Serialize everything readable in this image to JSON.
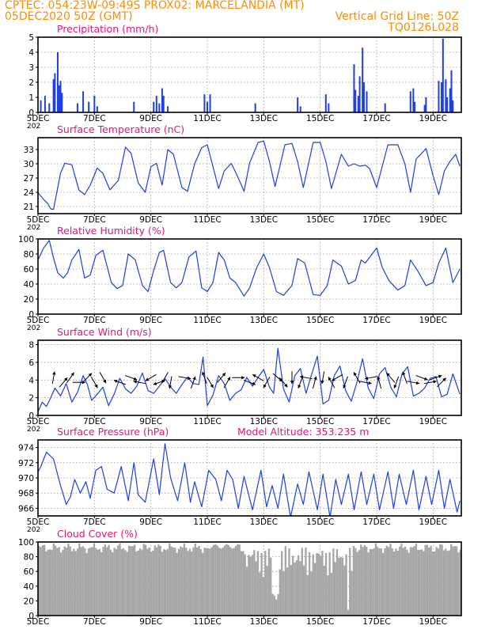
{
  "header": {
    "line1_left": "CPTEC:   054:23W-09:49S   PROX02: MARCELANDIA (MT)",
    "line2_left": "05DEC2020 50Z (GMT)",
    "line2_right": "Vertical Grid Line: 50Z",
    "line3_right": "TQ0126L028",
    "color": "#ff8c00"
  },
  "colors": {
    "title": "#e8127d",
    "series": "#1f3fe0",
    "cloud": "#a6a6a6",
    "arrow": "#000000",
    "grid": "#9a9a9a"
  },
  "x_axis": {
    "day_range": [
      5,
      20
    ],
    "ticks": [
      5,
      7,
      9,
      11,
      13,
      15,
      17,
      19
    ],
    "tick_labels": [
      "5DEC",
      "7DEC",
      "9DEC",
      "11DEC",
      "13DEC",
      "15DEC",
      "17DEC",
      "19DEC"
    ],
    "first_label_partial": "202"
  },
  "chart_data": [
    {
      "type": "bar",
      "title": "Precipitation (mm/h)",
      "ylim": [
        0,
        5
      ],
      "yticks": [
        0,
        1,
        2,
        3,
        4,
        5
      ],
      "x_days": [
        5.1,
        5.25,
        5.4,
        5.55,
        5.6,
        5.7,
        5.75,
        5.8,
        5.85,
        6.4,
        6.6,
        6.8,
        7.0,
        7.1,
        8.4,
        9.1,
        9.2,
        9.3,
        9.4,
        9.45,
        9.6,
        10.9,
        11.0,
        11.1,
        12.7,
        14.2,
        14.3,
        15.2,
        15.3,
        16.2,
        16.25,
        16.35,
        16.4,
        16.5,
        16.55,
        16.65,
        17.3,
        18.2,
        18.3,
        18.35,
        18.7,
        18.75,
        19.2,
        19.3,
        19.35,
        19.45,
        19.5,
        19.6,
        19.65,
        19.7
      ],
      "values": [
        0.8,
        1.1,
        0.6,
        2.2,
        2.6,
        4.0,
        1.8,
        2.1,
        1.3,
        0.6,
        1.4,
        0.7,
        1.1,
        0.4,
        0.7,
        0.7,
        1.1,
        0.6,
        1.6,
        1.1,
        0.4,
        1.2,
        0.7,
        1.2,
        0.6,
        1.0,
        0.4,
        1.2,
        0.6,
        3.2,
        1.5,
        1.1,
        2.4,
        4.3,
        2.0,
        1.4,
        0.6,
        1.4,
        1.6,
        0.7,
        0.5,
        1.0,
        2.1,
        2.0,
        4.9,
        2.2,
        1.0,
        1.6,
        2.8,
        0.8
      ]
    },
    {
      "type": "line",
      "title": "Surface Temperature (nC)",
      "ylim": [
        19.5,
        35.5
      ],
      "yticks": [
        21,
        24,
        27,
        30,
        33
      ],
      "x_days": [
        5.0,
        5.2,
        5.35,
        5.45,
        5.55,
        5.65,
        5.8,
        5.95,
        6.2,
        6.45,
        6.65,
        6.85,
        7.1,
        7.3,
        7.55,
        7.85,
        8.1,
        8.3,
        8.55,
        8.8,
        9.0,
        9.2,
        9.4,
        9.6,
        9.8,
        10.1,
        10.3,
        10.55,
        10.8,
        11.0,
        11.15,
        11.4,
        11.6,
        11.85,
        12.1,
        12.3,
        12.5,
        12.8,
        13.0,
        13.2,
        13.4,
        13.75,
        14.0,
        14.2,
        14.4,
        14.75,
        15.0,
        15.2,
        15.4,
        15.75,
        16.0,
        16.2,
        16.4,
        16.6,
        16.75,
        17.0,
        17.2,
        17.4,
        17.75,
        18.0,
        18.2,
        18.4,
        18.75,
        19.0,
        19.2,
        19.4,
        19.6,
        19.8,
        19.95
      ],
      "values": [
        23.9,
        22.5,
        21.6,
        20.5,
        20.4,
        23.5,
        28.0,
        30.1,
        29.8,
        24.5,
        23.5,
        25.5,
        29.1,
        28.0,
        24.5,
        26.5,
        33.5,
        32.2,
        26.0,
        24.0,
        29.4,
        30.1,
        25.5,
        33.0,
        32.0,
        25.0,
        24.2,
        30.0,
        33.4,
        34.0,
        30.5,
        24.8,
        28.5,
        30.1,
        27.0,
        24.2,
        30.2,
        34.5,
        34.8,
        30.5,
        25.2,
        34.0,
        34.3,
        30.5,
        25.0,
        34.5,
        34.5,
        30.5,
        24.8,
        32.0,
        29.5,
        30.0,
        29.5,
        29.7,
        29.0,
        25.0,
        29.5,
        34.0,
        34.0,
        30.0,
        24.0,
        31.0,
        33.2,
        27.5,
        23.5,
        28.5,
        30.5,
        32.0,
        29.5
      ]
    },
    {
      "type": "line",
      "title": "Relative Humidity (%)",
      "ylim": [
        0,
        100
      ],
      "yticks": [
        0,
        20,
        40,
        60,
        80,
        100
      ],
      "x_days": [
        5.0,
        5.2,
        5.4,
        5.55,
        5.7,
        5.9,
        6.05,
        6.2,
        6.45,
        6.65,
        6.85,
        7.05,
        7.3,
        7.6,
        7.8,
        8.0,
        8.2,
        8.45,
        8.7,
        8.9,
        9.1,
        9.3,
        9.45,
        9.7,
        9.9,
        10.1,
        10.35,
        10.6,
        10.8,
        11.0,
        11.2,
        11.4,
        11.6,
        11.8,
        12.0,
        12.3,
        12.5,
        12.75,
        13.0,
        13.2,
        13.45,
        13.7,
        14.0,
        14.2,
        14.45,
        14.75,
        15.0,
        15.25,
        15.45,
        15.75,
        16.0,
        16.25,
        16.45,
        16.6,
        16.8,
        17.0,
        17.2,
        17.45,
        17.75,
        18.0,
        18.2,
        18.45,
        18.75,
        19.0,
        19.2,
        19.45,
        19.7,
        19.95
      ],
      "values": [
        72,
        88,
        98,
        75,
        55,
        48,
        55,
        72,
        86,
        48,
        52,
        78,
        85,
        42,
        34,
        38,
        80,
        72,
        38,
        30,
        58,
        82,
        85,
        42,
        35,
        42,
        76,
        84,
        35,
        30,
        42,
        82,
        72,
        48,
        42,
        24,
        35,
        62,
        80,
        62,
        30,
        25,
        38,
        74,
        68,
        26,
        25,
        38,
        72,
        64,
        40,
        45,
        72,
        68,
        78,
        88,
        62,
        44,
        32,
        38,
        72,
        58,
        38,
        42,
        68,
        88,
        42,
        60
      ]
    },
    {
      "type": "line",
      "title": "Surface Wind (m/s)",
      "ylim": [
        0,
        8.5
      ],
      "yticks": [
        0,
        2,
        4,
        6,
        8
      ],
      "x_days": [
        5.0,
        5.15,
        5.3,
        5.45,
        5.6,
        5.8,
        6.0,
        6.2,
        6.4,
        6.6,
        6.75,
        6.9,
        7.1,
        7.3,
        7.5,
        7.7,
        7.9,
        8.1,
        8.3,
        8.5,
        8.7,
        8.9,
        9.1,
        9.3,
        9.5,
        9.7,
        9.9,
        10.1,
        10.3,
        10.5,
        10.7,
        10.85,
        11.0,
        11.2,
        11.4,
        11.6,
        11.8,
        12.0,
        12.2,
        12.4,
        12.6,
        12.8,
        13.0,
        13.2,
        13.35,
        13.5,
        13.7,
        13.9,
        14.1,
        14.3,
        14.5,
        14.7,
        14.9,
        15.1,
        15.3,
        15.5,
        15.7,
        15.9,
        16.1,
        16.3,
        16.5,
        16.7,
        16.9,
        17.1,
        17.3,
        17.5,
        17.7,
        17.9,
        18.1,
        18.3,
        18.5,
        18.7,
        18.9,
        19.1,
        19.3,
        19.5,
        19.7,
        19.95
      ],
      "values": [
        0.4,
        1.5,
        1.0,
        2.0,
        3.1,
        2.2,
        3.6,
        1.5,
        2.6,
        4.5,
        3.5,
        1.7,
        2.4,
        3.2,
        1.1,
        2.4,
        4.2,
        3.0,
        2.5,
        3.3,
        4.8,
        2.8,
        2.5,
        3.3,
        4.2,
        3.2,
        2.5,
        3.5,
        4.3,
        3.6,
        3.5,
        6.6,
        1.1,
        2.3,
        4.5,
        3.6,
        1.7,
        2.5,
        2.9,
        4.3,
        3.3,
        4.3,
        5.2,
        3.2,
        2.5,
        7.6,
        3.0,
        1.5,
        4.5,
        5.3,
        2.5,
        4.7,
        6.7,
        1.3,
        1.7,
        4.5,
        5.6,
        2.8,
        1.6,
        3.7,
        6.4,
        3.1,
        1.9,
        4.7,
        5.4,
        3.2,
        2.1,
        4.7,
        5.5,
        2.2,
        2.5,
        3.1,
        4.2,
        4.4,
        2.1,
        2.4,
        4.7,
        2.4
      ],
      "arrow_days": [
        5.55,
        5.9,
        6.15,
        6.45,
        6.75,
        7.0,
        7.3,
        7.9,
        8.3,
        8.6,
        9.0,
        9.3,
        9.5,
        9.7,
        10.2,
        10.5,
        10.9,
        11.1,
        11.5,
        11.7,
        12.1,
        12.5,
        12.8,
        13.1,
        13.5,
        13.7,
        14.0,
        14.3,
        14.5,
        14.8,
        15.1,
        15.4,
        15.6,
        15.9,
        16.3,
        16.6,
        16.8,
        17.1,
        17.5,
        17.7,
        18.0,
        18.3,
        18.6,
        18.9,
        19.1,
        19.3
      ],
      "arrow_dirs": [
        10,
        40,
        35,
        90,
        45,
        150,
        150,
        290,
        110,
        280,
        240,
        250,
        210,
        190,
        100,
        20,
        340,
        150,
        40,
        30,
        90,
        110,
        300,
        210,
        130,
        140,
        180,
        200,
        280,
        15,
        190,
        330,
        240,
        200,
        330,
        100,
        260,
        345,
        320,
        200,
        340,
        100,
        110,
        80,
        70,
        45
      ],
      "arrow_level": 4.0
    },
    {
      "type": "line",
      "title": "Surface Pressure (hPa)",
      "annotation": "Model Altitude: 353.235 m",
      "ylim": [
        965,
        975
      ],
      "yticks": [
        966,
        968,
        970,
        972,
        974
      ],
      "x_days": [
        5.0,
        5.1,
        5.3,
        5.55,
        5.8,
        6.0,
        6.15,
        6.3,
        6.5,
        6.7,
        6.85,
        7.05,
        7.25,
        7.45,
        7.7,
        7.95,
        8.2,
        8.4,
        8.55,
        8.8,
        9.1,
        9.3,
        9.5,
        9.7,
        9.95,
        10.2,
        10.4,
        10.55,
        10.8,
        11.05,
        11.3,
        11.5,
        11.7,
        11.9,
        12.1,
        12.3,
        12.6,
        12.9,
        13.1,
        13.3,
        13.5,
        13.7,
        13.95,
        14.2,
        14.4,
        14.6,
        14.9,
        15.1,
        15.35,
        15.55,
        15.75,
        16.0,
        16.2,
        16.45,
        16.65,
        16.9,
        17.1,
        17.4,
        17.6,
        17.8,
        18.05,
        18.3,
        18.5,
        18.75,
        18.95,
        19.2,
        19.4,
        19.6,
        19.85,
        19.95
      ],
      "values": [
        970.8,
        971.5,
        973.4,
        972.5,
        969.0,
        966.5,
        967.5,
        969.8,
        968.0,
        969.5,
        967.3,
        971.0,
        971.5,
        968.5,
        968.0,
        971.5,
        967.0,
        972.0,
        967.8,
        966.8,
        972.5,
        967.8,
        974.5,
        970.0,
        967.0,
        972.0,
        966.8,
        969.5,
        966.2,
        971.0,
        969.8,
        967.0,
        971.0,
        969.8,
        966.0,
        970.2,
        965.8,
        971.0,
        966.2,
        969.0,
        966.0,
        970.5,
        964.8,
        969.2,
        966.5,
        970.8,
        965.8,
        970.5,
        964.8,
        969.8,
        966.5,
        970.5,
        965.8,
        970.8,
        966.5,
        970.5,
        965.8,
        970.8,
        966.0,
        970.5,
        966.5,
        971.0,
        965.8,
        970.2,
        966.5,
        971.0,
        966.0,
        969.8,
        965.5,
        967.0
      ]
    },
    {
      "type": "bar",
      "title": "Cloud Cover (%)",
      "ylim": [
        0,
        100
      ],
      "yticks": [
        0,
        20,
        40,
        60,
        80,
        100
      ]
    }
  ]
}
